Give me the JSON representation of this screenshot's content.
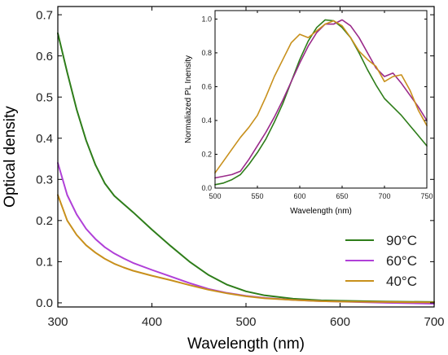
{
  "chart_data": [
    {
      "type": "line",
      "xlabel": "Wavelength (nm)",
      "ylabel": "Optical density",
      "xlim": [
        300,
        700
      ],
      "ylim": [
        -0.01,
        0.72
      ],
      "xticks": [
        300,
        400,
        500,
        600,
        700
      ],
      "yticks": [
        0.0,
        0.1,
        0.2,
        0.3,
        0.4,
        0.5,
        0.6,
        0.7
      ],
      "ytick_labels": [
        "0.0",
        "0.1",
        "0.2",
        "0.3",
        "0.4",
        "0.5",
        "0.6",
        "0.7"
      ],
      "legend_position": "bottom-right",
      "series": [
        {
          "name": "90°C",
          "color": "#2e7d1a",
          "x": [
            300,
            310,
            320,
            330,
            340,
            350,
            360,
            370,
            380,
            400,
            420,
            440,
            460,
            480,
            500,
            520,
            550,
            580,
            600,
            650,
            700
          ],
          "y": [
            0.655,
            0.56,
            0.47,
            0.395,
            0.335,
            0.29,
            0.26,
            0.24,
            0.22,
            0.178,
            0.138,
            0.1,
            0.068,
            0.044,
            0.028,
            0.018,
            0.01,
            0.006,
            0.005,
            0.003,
            0.002
          ]
        },
        {
          "name": "60°C",
          "color": "#b040d8",
          "x": [
            300,
            310,
            320,
            330,
            340,
            350,
            360,
            370,
            380,
            400,
            420,
            440,
            460,
            480,
            500,
            520,
            550,
            580,
            600,
            650,
            700
          ],
          "y": [
            0.34,
            0.262,
            0.215,
            0.18,
            0.155,
            0.135,
            0.12,
            0.108,
            0.097,
            0.08,
            0.064,
            0.048,
            0.034,
            0.024,
            0.017,
            0.012,
            0.007,
            0.004,
            0.003,
            0.0,
            -0.002
          ]
        },
        {
          "name": "40°C",
          "color": "#c8901c",
          "x": [
            300,
            310,
            320,
            330,
            340,
            350,
            360,
            370,
            380,
            400,
            420,
            440,
            460,
            480,
            500,
            520,
            550,
            580,
            600,
            650,
            700
          ],
          "y": [
            0.262,
            0.2,
            0.165,
            0.14,
            0.122,
            0.107,
            0.095,
            0.086,
            0.078,
            0.066,
            0.055,
            0.043,
            0.032,
            0.023,
            0.016,
            0.011,
            0.007,
            0.004,
            0.003,
            0.002,
            0.001
          ]
        }
      ]
    },
    {
      "type": "line",
      "xlabel": "Wavelength (nm)",
      "ylabel": "Normaliazed PL Inensity",
      "xlim": [
        500,
        750
      ],
      "ylim": [
        0.0,
        1.05
      ],
      "xticks": [
        500,
        550,
        600,
        650,
        700,
        750
      ],
      "yticks": [
        0.0,
        0.2,
        0.4,
        0.6,
        0.8,
        1.0
      ],
      "ytick_labels": [
        "0.0",
        "0.2",
        "0.4",
        "0.6",
        "0.8",
        "1.0"
      ],
      "series": [
        {
          "color": "#2e7d1a",
          "x": [
            500,
            510,
            520,
            530,
            540,
            550,
            560,
            570,
            580,
            590,
            600,
            610,
            620,
            630,
            640,
            650,
            660,
            670,
            680,
            690,
            700,
            710,
            720,
            730,
            740,
            750
          ],
          "y": [
            0.02,
            0.03,
            0.05,
            0.08,
            0.14,
            0.21,
            0.29,
            0.39,
            0.5,
            0.63,
            0.76,
            0.87,
            0.95,
            0.995,
            0.99,
            0.95,
            0.89,
            0.8,
            0.7,
            0.61,
            0.53,
            0.48,
            0.43,
            0.37,
            0.31,
            0.25
          ]
        },
        {
          "color": "#9a2a8a",
          "x": [
            500,
            510,
            520,
            530,
            540,
            550,
            560,
            570,
            580,
            590,
            600,
            610,
            620,
            630,
            640,
            650,
            660,
            670,
            680,
            690,
            700,
            710,
            720,
            730,
            740,
            750
          ],
          "y": [
            0.06,
            0.07,
            0.08,
            0.1,
            0.17,
            0.25,
            0.33,
            0.42,
            0.52,
            0.63,
            0.74,
            0.84,
            0.92,
            0.97,
            0.97,
            0.995,
            0.96,
            0.89,
            0.8,
            0.71,
            0.66,
            0.68,
            0.62,
            0.55,
            0.48,
            0.4
          ]
        },
        {
          "color": "#c8901c",
          "x": [
            500,
            510,
            520,
            530,
            540,
            550,
            560,
            570,
            580,
            590,
            600,
            610,
            620,
            630,
            640,
            650,
            660,
            670,
            680,
            690,
            700,
            710,
            720,
            730,
            740,
            750
          ],
          "y": [
            0.09,
            0.16,
            0.23,
            0.3,
            0.36,
            0.43,
            0.54,
            0.66,
            0.76,
            0.86,
            0.91,
            0.89,
            0.93,
            0.97,
            0.99,
            0.96,
            0.89,
            0.81,
            0.76,
            0.72,
            0.63,
            0.66,
            0.67,
            0.58,
            0.46,
            0.37
          ]
        }
      ]
    }
  ]
}
